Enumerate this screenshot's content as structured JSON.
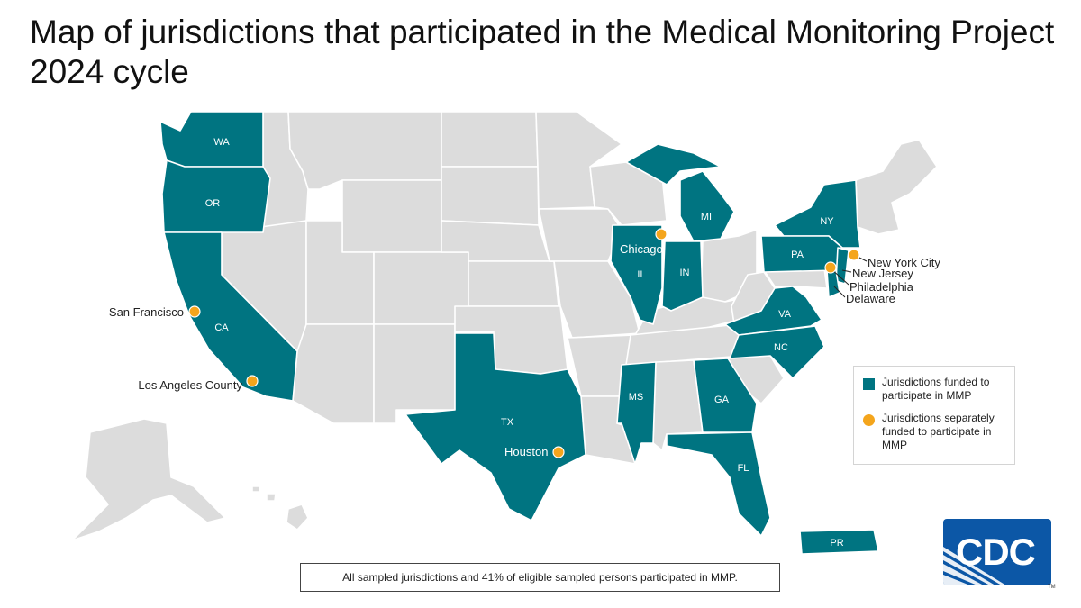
{
  "title": "Map of jurisdictions that participated in the Medical Monitoring Project 2024 cycle",
  "colors": {
    "funded": "#007481",
    "not_participating": "#dcdcdc",
    "separately_funded": "#f4a51c",
    "logo": "#0c57a6"
  },
  "state_labels": [
    "WA",
    "OR",
    "CA",
    "MI",
    "NY",
    "PA",
    "IL",
    "IN",
    "VA",
    "NC",
    "TX",
    "MS",
    "GA",
    "FL",
    "PR"
  ],
  "cities": [
    "San Francisco",
    "Los Angeles County",
    "Chicago",
    "Houston",
    "New York City",
    "New Jersey",
    "Philadelphia",
    "Delaware"
  ],
  "legend": {
    "funded": "Jurisdictions funded to participate in MMP",
    "separately_funded": "Jurisdictions separately funded to participate in MMP"
  },
  "footnote": "All sampled jurisdictions and 41% of eligible sampled persons participated in MMP.",
  "logo": {
    "text": "CDC",
    "trademark": "TM",
    "icon": "cdc-logo-icon"
  }
}
